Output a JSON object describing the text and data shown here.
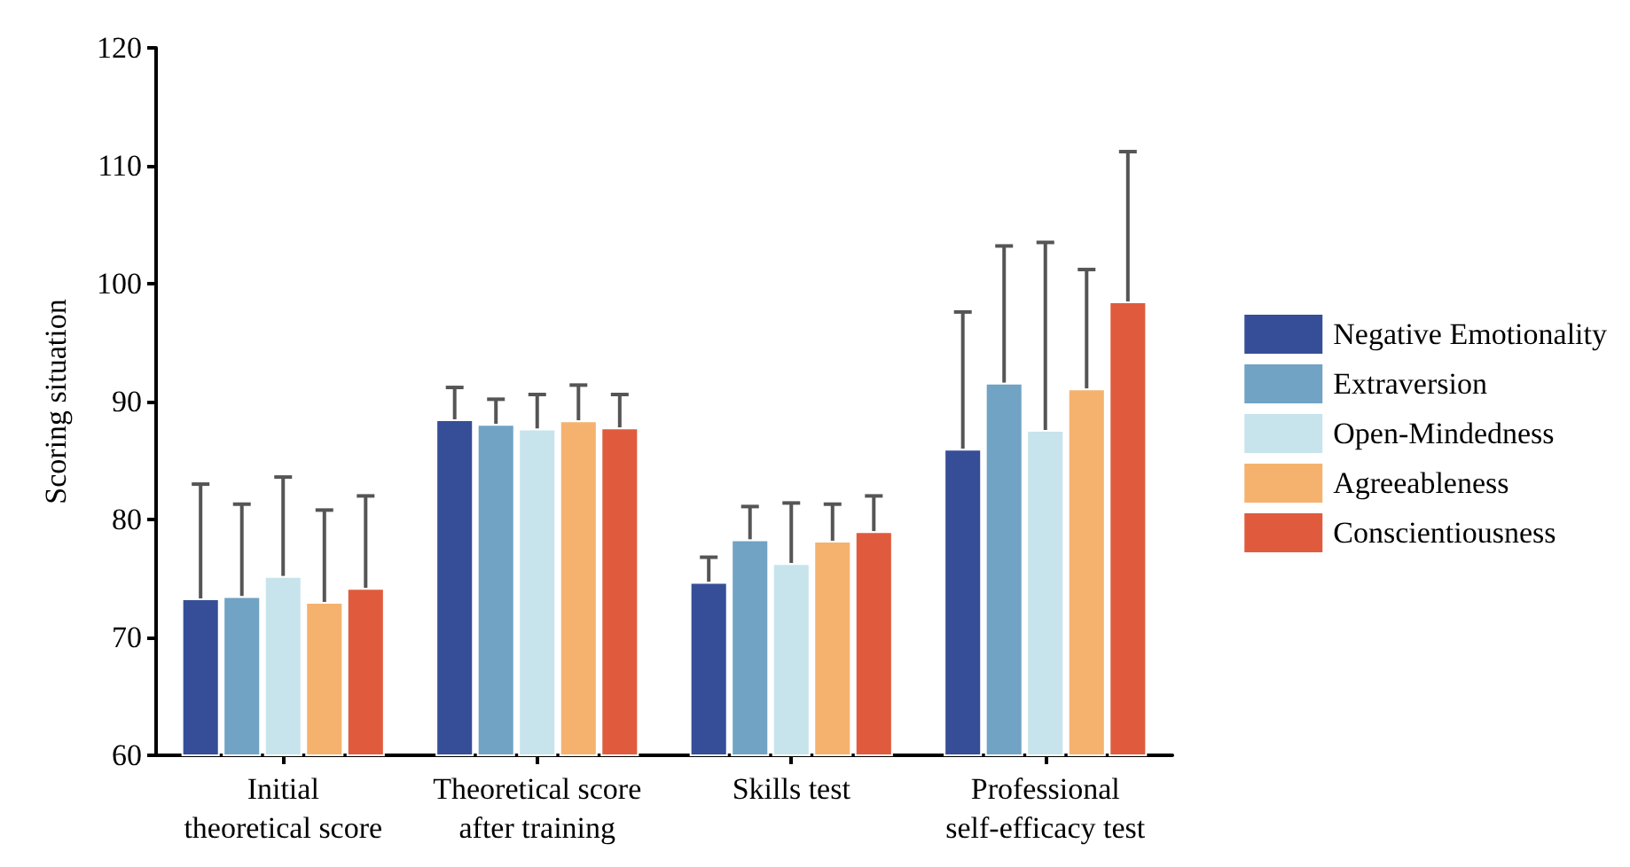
{
  "chart_data": {
    "type": "bar",
    "ylabel": "Scoring situation",
    "categories": [
      "Initial\ntheoretical score",
      "Theoretical score\nafter training",
      "Skills test",
      "Professional\nself-efficacy test"
    ],
    "series": [
      {
        "name": "Negative Emotionality",
        "color": "#354e97",
        "values": [
          73.3,
          88.5,
          74.7,
          86.0
        ],
        "errors": [
          [
            73.3,
            83.0
          ],
          [
            88.5,
            91.2
          ],
          [
            74.7,
            76.8
          ],
          [
            86.0,
            97.6
          ]
        ]
      },
      {
        "name": "Extraversion",
        "color": "#70a3c4",
        "values": [
          73.5,
          88.1,
          78.3,
          91.6
        ],
        "errors": [
          [
            73.5,
            81.3
          ],
          [
            88.1,
            90.2
          ],
          [
            78.3,
            81.1
          ],
          [
            91.6,
            103.2
          ]
        ]
      },
      {
        "name": "Open-Mindedness",
        "color": "#c7e4ec",
        "values": [
          75.2,
          87.7,
          76.3,
          87.6
        ],
        "errors": [
          [
            75.2,
            83.6
          ],
          [
            87.7,
            90.6
          ],
          [
            76.3,
            81.4
          ],
          [
            87.6,
            103.5
          ]
        ]
      },
      {
        "name": "Agreeableness",
        "color": "#f5b26e",
        "values": [
          73.0,
          88.4,
          78.2,
          91.1
        ],
        "errors": [
          [
            73.0,
            80.8
          ],
          [
            88.4,
            91.4
          ],
          [
            78.2,
            81.3
          ],
          [
            91.1,
            101.2
          ]
        ]
      },
      {
        "name": "Conscientiousness",
        "color": "#e05b3d",
        "values": [
          74.2,
          87.8,
          79.0,
          98.5
        ],
        "errors": [
          [
            74.2,
            82.0
          ],
          [
            87.8,
            90.6
          ],
          [
            79.0,
            82.0
          ],
          [
            98.5,
            111.2
          ]
        ]
      }
    ],
    "ylim": [
      60,
      120
    ],
    "yticks": [
      60,
      70,
      80,
      90,
      100,
      110,
      120
    ],
    "grid": false,
    "legend": "right"
  }
}
